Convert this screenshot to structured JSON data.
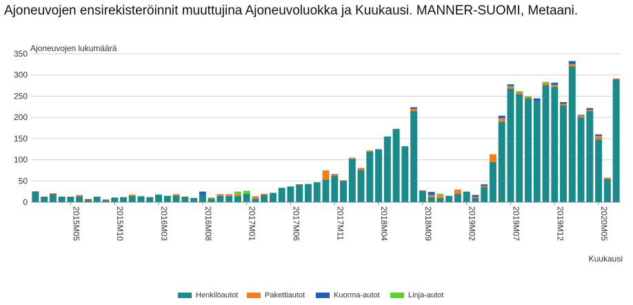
{
  "title": "Ajoneuvojen ensirekisteröinnit muuttujina Ajoneuvoluokka ja Kuukausi. MANNER-SUOMI, Metaani.",
  "chart_data": {
    "type": "bar",
    "stacked": true,
    "ylabel": "Ajoneuvojen lukumäärä",
    "xlabel": "Kuukausi",
    "ylim": [
      0,
      350
    ],
    "yticks": [
      0,
      50,
      100,
      150,
      200,
      250,
      300,
      350
    ],
    "grid": true,
    "legend_position": "bottom",
    "categories": [
      "2015M01",
      "2015M02",
      "2015M03",
      "2015M04",
      "2015M05",
      "2015M06",
      "2015M07",
      "2015M08",
      "2015M09",
      "2015M10",
      "2015M11",
      "2015M12",
      "2016M01",
      "2016M02",
      "2016M03",
      "2016M04",
      "2016M05",
      "2016M06",
      "2016M07",
      "2016M08",
      "2016M09",
      "2016M10",
      "2016M11",
      "2016M12",
      "2017M01",
      "2017M02",
      "2017M03",
      "2017M04",
      "2017M05",
      "2017M06",
      "2017M07",
      "2017M08",
      "2017M09",
      "2017M10",
      "2017M11",
      "2017M12",
      "2018M01",
      "2018M02",
      "2018M03",
      "2018M04",
      "2018M05",
      "2018M06",
      "2018M07",
      "2018M08",
      "2018M09",
      "2018M10",
      "2018M11",
      "2018M12",
      "2019M01",
      "2019M02",
      "2019M03",
      "2019M04",
      "2019M05",
      "2019M06",
      "2019M07",
      "2019M08",
      "2019M09",
      "2019M10",
      "2019M11",
      "2019M12",
      "2020M01",
      "2020M02",
      "2020M03",
      "2020M04",
      "2020M05",
      "2020M06",
      "2020M07"
    ],
    "visible_tick_labels": [
      "2015M05",
      "2015M10",
      "2016M03",
      "2016M08",
      "2017M01",
      "2017M06",
      "2017M11",
      "2018M04",
      "2018M09",
      "2019M02",
      "2019M07",
      "2019M12",
      "2020M05"
    ],
    "series": [
      {
        "name": "Henkilöautot",
        "color": "#1a8a8a",
        "values": [
          25,
          13,
          20,
          13,
          13,
          14,
          7,
          13,
          5,
          11,
          12,
          15,
          14,
          12,
          18,
          15,
          16,
          13,
          10,
          18,
          8,
          15,
          15,
          15,
          20,
          8,
          17,
          22,
          34,
          37,
          40,
          43,
          47,
          53,
          62,
          50,
          102,
          76,
          119,
          125,
          155,
          173,
          132,
          215,
          27,
          12,
          10,
          15,
          20,
          25,
          10,
          35,
          95,
          190,
          268,
          255,
          245,
          238,
          276,
          272,
          228,
          320,
          200,
          215,
          148,
          55,
          290
        ]
      },
      {
        "name": "Pakettiautot",
        "color": "#f47c20",
        "values": [
          1,
          0,
          1,
          0,
          0,
          3,
          1,
          0,
          2,
          0,
          0,
          3,
          0,
          0,
          0,
          0,
          3,
          0,
          0,
          0,
          3,
          4,
          4,
          5,
          0,
          6,
          3,
          0,
          0,
          0,
          0,
          0,
          0,
          22,
          2,
          2,
          3,
          5,
          3,
          0,
          0,
          0,
          0,
          5,
          1,
          5,
          5,
          0,
          10,
          0,
          2,
          3,
          18,
          8,
          6,
          5,
          3,
          0,
          5,
          5,
          4,
          6,
          4,
          3,
          8,
          3,
          2
        ]
      },
      {
        "name": "Kuorma-autot",
        "color": "#1f5fb5",
        "values": [
          0,
          0,
          0,
          0,
          0,
          0,
          0,
          0,
          0,
          0,
          0,
          0,
          0,
          0,
          0,
          0,
          0,
          0,
          0,
          7,
          0,
          0,
          0,
          0,
          0,
          0,
          0,
          0,
          0,
          0,
          2,
          0,
          0,
          0,
          2,
          0,
          0,
          0,
          0,
          0,
          0,
          0,
          0,
          4,
          0,
          7,
          0,
          0,
          0,
          0,
          5,
          4,
          0,
          6,
          4,
          0,
          0,
          7,
          0,
          5,
          4,
          7,
          2,
          4,
          4,
          0,
          0
        ]
      },
      {
        "name": "Linja-autot",
        "color": "#5ad12c",
        "values": [
          0,
          0,
          0,
          0,
          0,
          0,
          0,
          0,
          0,
          0,
          0,
          0,
          0,
          0,
          0,
          0,
          0,
          0,
          0,
          0,
          0,
          0,
          0,
          5,
          7,
          0,
          0,
          0,
          0,
          0,
          0,
          0,
          0,
          0,
          0,
          0,
          0,
          0,
          0,
          0,
          0,
          0,
          0,
          0,
          0,
          0,
          5,
          0,
          0,
          0,
          0,
          0,
          0,
          0,
          0,
          2,
          2,
          0,
          3,
          0,
          0,
          0,
          0,
          0,
          0,
          0,
          0
        ]
      }
    ]
  }
}
